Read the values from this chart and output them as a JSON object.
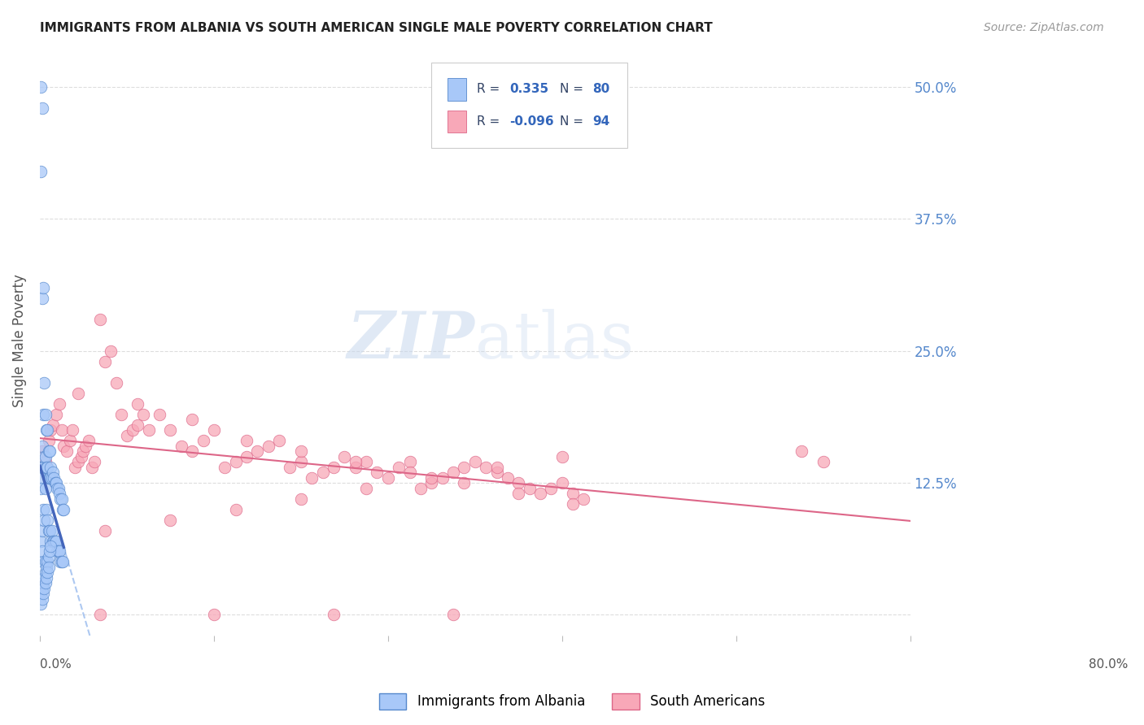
{
  "title": "IMMIGRANTS FROM ALBANIA VS SOUTH AMERICAN SINGLE MALE POVERTY CORRELATION CHART",
  "source": "Source: ZipAtlas.com",
  "ylabel": "Single Male Poverty",
  "xlim": [
    0.0,
    0.8
  ],
  "ylim": [
    -0.02,
    0.54
  ],
  "yticks": [
    0.0,
    0.125,
    0.25,
    0.375,
    0.5
  ],
  "ytick_labels_right": [
    "",
    "12.5%",
    "25.0%",
    "37.5%",
    "50.0%"
  ],
  "xticks": [
    0.0,
    0.16,
    0.32,
    0.48,
    0.64,
    0.8
  ],
  "legend_R1": "0.335",
  "legend_N1": "80",
  "legend_R2": "-0.096",
  "legend_N2": "94",
  "color_albania_fill": "#a8c8f8",
  "color_albania_edge": "#5588cc",
  "color_albania_line": "#4466bb",
  "color_south_fill": "#f8a8b8",
  "color_south_edge": "#dd6688",
  "color_south_line": "#dd6688",
  "color_dashed": "#99bbee",
  "watermark_color": "#c8d8ee",
  "background_color": "#ffffff",
  "grid_color": "#dddddd",
  "title_color": "#222222",
  "right_label_color": "#5588cc",
  "legend_label_color": "#334466",
  "legend_value_color": "#3366bb",
  "albania_x": [
    0.001,
    0.001,
    0.001,
    0.001,
    0.001,
    0.002,
    0.002,
    0.002,
    0.002,
    0.002,
    0.003,
    0.003,
    0.003,
    0.003,
    0.003,
    0.004,
    0.004,
    0.004,
    0.005,
    0.005,
    0.005,
    0.005,
    0.006,
    0.006,
    0.006,
    0.007,
    0.007,
    0.007,
    0.008,
    0.008,
    0.008,
    0.009,
    0.009,
    0.009,
    0.01,
    0.01,
    0.01,
    0.011,
    0.011,
    0.012,
    0.012,
    0.013,
    0.013,
    0.014,
    0.014,
    0.015,
    0.015,
    0.016,
    0.016,
    0.017,
    0.017,
    0.018,
    0.018,
    0.019,
    0.019,
    0.02,
    0.02,
    0.021,
    0.021,
    0.022,
    0.001,
    0.002,
    0.003,
    0.004,
    0.005,
    0.006,
    0.007,
    0.008,
    0.009,
    0.01,
    0.001,
    0.002,
    0.003,
    0.004,
    0.005,
    0.006,
    0.007,
    0.008,
    0.001,
    0.002
  ],
  "albania_y": [
    0.42,
    0.14,
    0.13,
    0.12,
    0.07,
    0.3,
    0.16,
    0.14,
    0.08,
    0.06,
    0.31,
    0.19,
    0.14,
    0.1,
    0.05,
    0.22,
    0.15,
    0.09,
    0.19,
    0.15,
    0.12,
    0.05,
    0.175,
    0.14,
    0.1,
    0.175,
    0.14,
    0.09,
    0.155,
    0.13,
    0.08,
    0.155,
    0.13,
    0.08,
    0.14,
    0.13,
    0.07,
    0.13,
    0.08,
    0.135,
    0.07,
    0.13,
    0.07,
    0.125,
    0.07,
    0.125,
    0.07,
    0.12,
    0.06,
    0.12,
    0.06,
    0.115,
    0.06,
    0.11,
    0.05,
    0.11,
    0.05,
    0.1,
    0.05,
    0.1,
    0.02,
    0.025,
    0.03,
    0.035,
    0.04,
    0.045,
    0.05,
    0.055,
    0.06,
    0.065,
    0.01,
    0.015,
    0.02,
    0.025,
    0.03,
    0.035,
    0.04,
    0.045,
    0.5,
    0.48
  ],
  "south_x": [
    0.002,
    0.005,
    0.008,
    0.01,
    0.012,
    0.015,
    0.018,
    0.02,
    0.022,
    0.025,
    0.028,
    0.03,
    0.032,
    0.035,
    0.038,
    0.04,
    0.042,
    0.045,
    0.048,
    0.05,
    0.055,
    0.06,
    0.065,
    0.07,
    0.075,
    0.08,
    0.085,
    0.09,
    0.095,
    0.1,
    0.11,
    0.12,
    0.13,
    0.14,
    0.15,
    0.16,
    0.17,
    0.18,
    0.19,
    0.2,
    0.21,
    0.22,
    0.23,
    0.24,
    0.25,
    0.26,
    0.27,
    0.28,
    0.29,
    0.3,
    0.31,
    0.32,
    0.33,
    0.34,
    0.35,
    0.36,
    0.37,
    0.38,
    0.39,
    0.4,
    0.41,
    0.42,
    0.43,
    0.44,
    0.45,
    0.46,
    0.47,
    0.48,
    0.49,
    0.5,
    0.035,
    0.09,
    0.14,
    0.19,
    0.24,
    0.29,
    0.34,
    0.39,
    0.44,
    0.49,
    0.06,
    0.12,
    0.18,
    0.24,
    0.3,
    0.36,
    0.42,
    0.48,
    0.055,
    0.16,
    0.27,
    0.38,
    0.7,
    0.72
  ],
  "south_y": [
    0.155,
    0.145,
    0.165,
    0.175,
    0.18,
    0.19,
    0.2,
    0.175,
    0.16,
    0.155,
    0.165,
    0.175,
    0.14,
    0.145,
    0.15,
    0.155,
    0.16,
    0.165,
    0.14,
    0.145,
    0.28,
    0.24,
    0.25,
    0.22,
    0.19,
    0.17,
    0.175,
    0.18,
    0.19,
    0.175,
    0.19,
    0.175,
    0.16,
    0.155,
    0.165,
    0.175,
    0.14,
    0.145,
    0.15,
    0.155,
    0.16,
    0.165,
    0.14,
    0.145,
    0.13,
    0.135,
    0.14,
    0.15,
    0.14,
    0.145,
    0.135,
    0.13,
    0.14,
    0.145,
    0.12,
    0.125,
    0.13,
    0.135,
    0.14,
    0.145,
    0.14,
    0.135,
    0.13,
    0.125,
    0.12,
    0.115,
    0.12,
    0.125,
    0.115,
    0.11,
    0.21,
    0.2,
    0.185,
    0.165,
    0.155,
    0.145,
    0.135,
    0.125,
    0.115,
    0.105,
    0.08,
    0.09,
    0.1,
    0.11,
    0.12,
    0.13,
    0.14,
    0.15,
    0.0,
    0.0,
    0.0,
    0.0,
    0.155,
    0.145
  ]
}
